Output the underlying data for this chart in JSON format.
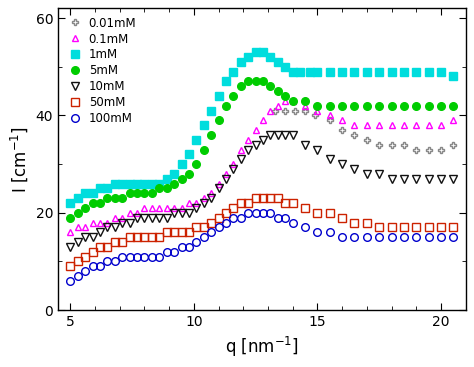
{
  "xlabel": "q [nm$^{-1}$]",
  "ylabel": "I [cm$^{-1}$]",
  "xlim": [
    4.5,
    21.0
  ],
  "ylim": [
    0,
    62
  ],
  "xticks": [
    5,
    10,
    15,
    20
  ],
  "yticks": [
    0,
    20,
    40,
    60
  ],
  "series": [
    {
      "label": "0.01mM",
      "color": "#888888",
      "marker": "P",
      "markersize": 5,
      "linewidth": 0,
      "filled": false,
      "x": [
        13.3,
        13.7,
        14.1,
        14.5,
        14.9,
        15.5,
        16.0,
        16.5,
        17.0,
        17.5,
        18.0,
        18.5,
        19.0,
        19.5,
        20.0,
        20.5
      ],
      "y": [
        41,
        41,
        41,
        41,
        40,
        39,
        37,
        36,
        35,
        34,
        34,
        34,
        33,
        33,
        33,
        34
      ]
    },
    {
      "label": "0.1mM",
      "color": "#ff00ff",
      "marker": "^",
      "markersize": 5,
      "linewidth": 0,
      "filled": false,
      "x": [
        5.0,
        5.3,
        5.6,
        5.9,
        6.2,
        6.5,
        6.8,
        7.1,
        7.4,
        7.7,
        8.0,
        8.3,
        8.6,
        8.9,
        9.2,
        9.5,
        9.8,
        10.1,
        10.4,
        10.7,
        11.0,
        11.3,
        11.6,
        11.9,
        12.2,
        12.5,
        12.8,
        13.1,
        13.4,
        13.7,
        14.0,
        14.5,
        15.0,
        15.5,
        16.0,
        16.5,
        17.0,
        17.5,
        18.0,
        18.5,
        19.0,
        19.5,
        20.0,
        20.5
      ],
      "y": [
        16,
        17,
        17,
        18,
        18,
        18,
        19,
        19,
        20,
        20,
        21,
        21,
        21,
        21,
        21,
        21,
        22,
        22,
        23,
        24,
        26,
        28,
        30,
        33,
        35,
        37,
        39,
        41,
        42,
        43,
        43,
        42,
        41,
        40,
        39,
        38,
        38,
        38,
        38,
        38,
        38,
        38,
        38,
        39
      ]
    },
    {
      "label": "1mM",
      "color": "#00dddd",
      "marker": "s",
      "markersize": 5.5,
      "linewidth": 0,
      "filled": true,
      "x": [
        5.0,
        5.3,
        5.6,
        5.9,
        6.2,
        6.5,
        6.8,
        7.1,
        7.4,
        7.7,
        8.0,
        8.3,
        8.6,
        8.9,
        9.2,
        9.5,
        9.8,
        10.1,
        10.4,
        10.7,
        11.0,
        11.3,
        11.6,
        11.9,
        12.2,
        12.5,
        12.8,
        13.1,
        13.4,
        13.7,
        14.0,
        14.3,
        14.7,
        15.0,
        15.5,
        16.0,
        16.5,
        17.0,
        17.5,
        18.0,
        18.5,
        19.0,
        19.5,
        20.0,
        20.5
      ],
      "y": [
        22,
        23,
        24,
        24,
        25,
        25,
        26,
        26,
        26,
        26,
        26,
        26,
        26,
        27,
        28,
        30,
        32,
        35,
        38,
        41,
        44,
        47,
        49,
        51,
        52,
        53,
        53,
        52,
        51,
        50,
        49,
        49,
        49,
        49,
        49,
        49,
        49,
        49,
        49,
        49,
        49,
        49,
        49,
        49,
        48
      ]
    },
    {
      "label": "5mM",
      "color": "#00cc00",
      "marker": "o",
      "markersize": 5.5,
      "linewidth": 0,
      "filled": true,
      "x": [
        5.0,
        5.3,
        5.6,
        5.9,
        6.2,
        6.5,
        6.8,
        7.1,
        7.4,
        7.7,
        8.0,
        8.3,
        8.6,
        8.9,
        9.2,
        9.5,
        9.8,
        10.1,
        10.4,
        10.7,
        11.0,
        11.3,
        11.6,
        11.9,
        12.2,
        12.5,
        12.8,
        13.1,
        13.4,
        13.7,
        14.0,
        14.5,
        15.0,
        15.5,
        16.0,
        16.5,
        17.0,
        17.5,
        18.0,
        18.5,
        19.0,
        19.5,
        20.0,
        20.5
      ],
      "y": [
        19,
        20,
        21,
        22,
        22,
        23,
        23,
        23,
        24,
        24,
        24,
        24,
        25,
        25,
        26,
        27,
        28,
        30,
        33,
        36,
        39,
        42,
        44,
        46,
        47,
        47,
        47,
        46,
        45,
        44,
        43,
        43,
        42,
        42,
        42,
        42,
        42,
        42,
        42,
        42,
        42,
        42,
        42,
        42
      ]
    },
    {
      "label": "10mM",
      "color": "#111111",
      "marker": "v",
      "markersize": 5.5,
      "linewidth": 0,
      "filled": false,
      "x": [
        5.0,
        5.3,
        5.6,
        5.9,
        6.2,
        6.5,
        6.8,
        7.1,
        7.4,
        7.7,
        8.0,
        8.3,
        8.6,
        8.9,
        9.2,
        9.5,
        9.8,
        10.1,
        10.4,
        10.7,
        11.0,
        11.3,
        11.6,
        11.9,
        12.2,
        12.5,
        12.8,
        13.1,
        13.4,
        13.7,
        14.0,
        14.5,
        15.0,
        15.5,
        16.0,
        16.5,
        17.0,
        17.5,
        18.0,
        18.5,
        19.0,
        19.5,
        20.0,
        20.5
      ],
      "y": [
        13,
        14,
        15,
        15,
        16,
        17,
        17,
        18,
        18,
        19,
        19,
        19,
        19,
        19,
        20,
        20,
        20,
        21,
        22,
        23,
        25,
        27,
        29,
        31,
        33,
        34,
        35,
        36,
        36,
        36,
        36,
        34,
        33,
        31,
        30,
        29,
        28,
        28,
        27,
        27,
        27,
        27,
        27,
        27
      ]
    },
    {
      "label": "50mM",
      "color": "#cc2200",
      "marker": "s",
      "markersize": 5.5,
      "linewidth": 0,
      "filled": false,
      "x": [
        5.0,
        5.3,
        5.6,
        5.9,
        6.2,
        6.5,
        6.8,
        7.1,
        7.4,
        7.7,
        8.0,
        8.3,
        8.6,
        8.9,
        9.2,
        9.5,
        9.8,
        10.1,
        10.4,
        10.7,
        11.0,
        11.3,
        11.6,
        11.9,
        12.2,
        12.5,
        12.8,
        13.1,
        13.4,
        13.7,
        14.0,
        14.5,
        15.0,
        15.5,
        16.0,
        16.5,
        17.0,
        17.5,
        18.0,
        18.5,
        19.0,
        19.5,
        20.0,
        20.5
      ],
      "y": [
        9,
        10,
        11,
        12,
        13,
        13,
        14,
        14,
        15,
        15,
        15,
        15,
        15,
        16,
        16,
        16,
        16,
        17,
        17,
        18,
        19,
        20,
        21,
        22,
        22,
        23,
        23,
        23,
        23,
        22,
        22,
        21,
        20,
        20,
        19,
        18,
        18,
        17,
        17,
        17,
        17,
        17,
        17,
        17
      ]
    },
    {
      "label": "100mM",
      "color": "#0000cc",
      "marker": "o",
      "markersize": 5.5,
      "linewidth": 0,
      "filled": false,
      "x": [
        5.0,
        5.3,
        5.6,
        5.9,
        6.2,
        6.5,
        6.8,
        7.1,
        7.4,
        7.7,
        8.0,
        8.3,
        8.6,
        8.9,
        9.2,
        9.5,
        9.8,
        10.1,
        10.4,
        10.7,
        11.0,
        11.3,
        11.6,
        11.9,
        12.2,
        12.5,
        12.8,
        13.1,
        13.4,
        13.7,
        14.0,
        14.5,
        15.0,
        15.5,
        16.0,
        16.5,
        17.0,
        17.5,
        18.0,
        18.5,
        19.0,
        19.5,
        20.0,
        20.5
      ],
      "y": [
        6,
        7,
        8,
        9,
        9,
        10,
        10,
        11,
        11,
        11,
        11,
        11,
        11,
        12,
        12,
        13,
        13,
        14,
        15,
        16,
        17,
        18,
        19,
        19,
        20,
        20,
        20,
        20,
        19,
        19,
        18,
        17,
        16,
        16,
        15,
        15,
        15,
        15,
        15,
        15,
        15,
        15,
        15,
        15
      ]
    }
  ],
  "background_color": "#ffffff",
  "legend_fontsize": 8.5,
  "axis_fontsize": 12,
  "tick_fontsize": 10
}
